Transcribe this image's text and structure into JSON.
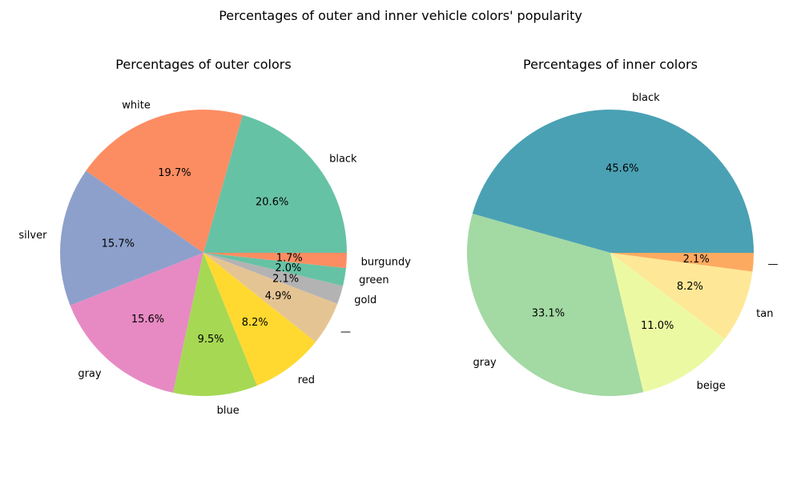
{
  "figure": {
    "title": "Percentages of outer and inner vehicle colors' popularity"
  },
  "chart_data": [
    {
      "type": "pie",
      "title": "Percentages of outer colors",
      "start_angle": 0,
      "direction": "counterclockwise",
      "slices": [
        {
          "label": "black",
          "value": 20.6,
          "color": "#66c2a5"
        },
        {
          "label": "white",
          "value": 19.7,
          "color": "#fc8d62"
        },
        {
          "label": "silver",
          "value": 15.7,
          "color": "#8da0cb"
        },
        {
          "label": "gray",
          "value": 15.6,
          "color": "#e78ac3"
        },
        {
          "label": "blue",
          "value": 9.5,
          "color": "#a6d854"
        },
        {
          "label": "red",
          "value": 8.2,
          "color": "#ffd92f"
        },
        {
          "label": "—",
          "value": 4.9,
          "color": "#e5c494"
        },
        {
          "label": "gold",
          "value": 2.1,
          "color": "#b3b3b3"
        },
        {
          "label": "green",
          "value": 2.0,
          "color": "#66c2a5"
        },
        {
          "label": "burgundy",
          "value": 1.7,
          "color": "#fc8d62"
        }
      ]
    },
    {
      "type": "pie",
      "title": "Percentages of inner colors",
      "start_angle": 0,
      "direction": "counterclockwise",
      "slices": [
        {
          "label": "black",
          "value": 45.6,
          "color": "#4aa1b4"
        },
        {
          "label": "gray",
          "value": 33.1,
          "color": "#a3d9a3"
        },
        {
          "label": "beige",
          "value": 11.0,
          "color": "#ecf9a3"
        },
        {
          "label": "tan",
          "value": 8.2,
          "color": "#fee897"
        },
        {
          "label": "—",
          "value": 2.1,
          "color": "#fdaa61"
        }
      ]
    }
  ]
}
